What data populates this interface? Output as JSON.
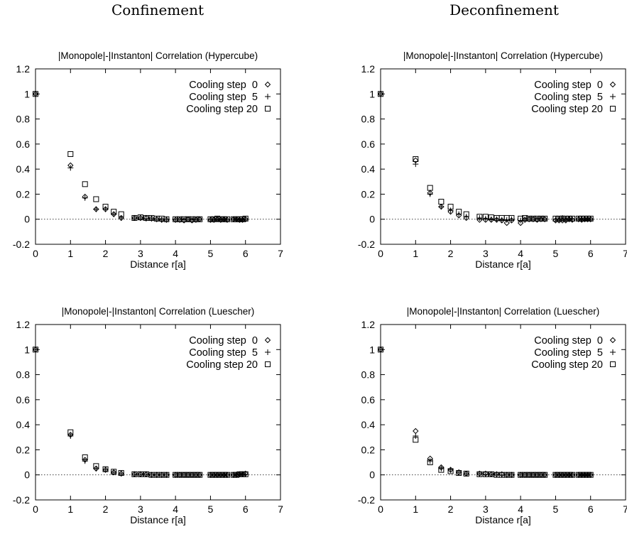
{
  "column_headers": [
    "Confinement",
    "Deconfinement"
  ],
  "chart_data": [
    {
      "type": "scatter",
      "title": "|Monopole|-|Instanton| Correlation (Hypercube)",
      "column": "Confinement",
      "xlabel": "Distance r[a]",
      "ylabel": "",
      "xlim": [
        0,
        7
      ],
      "ylim": [
        -0.2,
        1.2
      ],
      "xticks": [
        "0",
        "1",
        "2",
        "3",
        "4",
        "5",
        "6",
        "7"
      ],
      "yticks": [
        "-0.2",
        "0",
        "0.2",
        "0.4",
        "0.6",
        "0.8",
        "1",
        "1.2"
      ],
      "grid": false,
      "legend_position": "top-right",
      "zero_line": true,
      "series": [
        {
          "name": "Cooling step  0",
          "marker": "diamond",
          "x": [
            0,
            1,
            1.414,
            1.732,
            2,
            2.236,
            2.449,
            2.828,
            3,
            3.162,
            3.317,
            3.464,
            3.606,
            3.742,
            4,
            4.123,
            4.243,
            4.359,
            4.472,
            4.583,
            4.69,
            5,
            5.099,
            5.196,
            5.292,
            5.385,
            5.477,
            5.657,
            5.745,
            5.831,
            5.916,
            6
          ],
          "y": [
            1,
            0.43,
            0.18,
            0.08,
            0.08,
            0.04,
            0.01,
            0.01,
            0.01,
            0.01,
            0.005,
            0.0,
            -0.005,
            -0.005,
            -0.005,
            -0.005,
            -0.01,
            0.0,
            -0.01,
            -0.005,
            0.0,
            -0.005,
            -0.005,
            0.0,
            -0.005,
            0.0,
            -0.005,
            0.0,
            0.0,
            -0.005,
            -0.005,
            0.0
          ]
        },
        {
          "name": "Cooling step  5",
          "marker": "plus",
          "x": [
            0,
            1,
            1.414,
            1.732,
            2,
            2.236,
            2.449,
            2.828,
            3,
            3.162,
            3.317,
            3.464,
            3.606,
            3.742,
            4,
            4.123,
            4.243,
            4.359,
            4.472,
            4.583,
            4.69,
            5,
            5.099,
            5.196,
            5.292,
            5.385,
            5.477,
            5.657,
            5.745,
            5.831,
            5.916,
            6
          ],
          "y": [
            1,
            0.41,
            0.17,
            0.08,
            0.08,
            0.04,
            0.01,
            0.01,
            0.01,
            0.005,
            0.005,
            0.0,
            -0.005,
            -0.005,
            -0.005,
            -0.005,
            -0.005,
            0.0,
            -0.005,
            -0.005,
            0.0,
            -0.005,
            -0.005,
            0.0,
            -0.005,
            0.0,
            -0.005,
            0.0,
            0.0,
            -0.005,
            -0.005,
            0.0
          ]
        },
        {
          "name": "Cooling step 20",
          "marker": "square",
          "x": [
            0,
            1,
            1.414,
            1.732,
            2,
            2.236,
            2.449,
            2.828,
            3,
            3.162,
            3.317,
            3.464,
            3.606,
            3.742,
            4,
            4.123,
            4.243,
            4.359,
            4.472,
            4.583,
            4.69,
            5,
            5.099,
            5.196,
            5.292,
            5.385,
            5.477,
            5.657,
            5.745,
            5.831,
            5.916,
            6
          ],
          "y": [
            1,
            0.52,
            0.28,
            0.16,
            0.1,
            0.06,
            0.04,
            0.01,
            0.015,
            0.01,
            0.01,
            0.005,
            0.005,
            0.0,
            0.0,
            0.0,
            0.0,
            0.0,
            0.0,
            0.0,
            0.0,
            0.0,
            0.0,
            0.005,
            0.0,
            0.0,
            0.0,
            0.0,
            0.0,
            0.0,
            0.0,
            0.005
          ]
        }
      ]
    },
    {
      "type": "scatter",
      "title": "|Monopole|-|Instanton| Correlation (Hypercube)",
      "column": "Deconfinement",
      "xlabel": "Distance r[a]",
      "ylabel": "",
      "xlim": [
        0,
        7
      ],
      "ylim": [
        -0.2,
        1.2
      ],
      "xticks": [
        "0",
        "1",
        "2",
        "3",
        "4",
        "5",
        "6",
        "7"
      ],
      "yticks": [
        "-0.2",
        "0",
        "0.2",
        "0.4",
        "0.6",
        "0.8",
        "1",
        "1.2"
      ],
      "grid": false,
      "legend_position": "top-right",
      "zero_line": true,
      "series": [
        {
          "name": "Cooling step  0",
          "marker": "diamond",
          "x": [
            0,
            1,
            1.414,
            1.732,
            2,
            2.236,
            2.449,
            2.828,
            3,
            3.162,
            3.317,
            3.464,
            3.606,
            3.742,
            4,
            4.123,
            4.243,
            4.359,
            4.472,
            4.583,
            4.69,
            5,
            5.099,
            5.196,
            5.292,
            5.385,
            5.477,
            5.657,
            5.745,
            5.831,
            5.916,
            6
          ],
          "y": [
            1,
            0.47,
            0.21,
            0.1,
            0.06,
            0.03,
            0.01,
            -0.005,
            -0.005,
            -0.005,
            -0.005,
            -0.01,
            -0.03,
            -0.01,
            -0.03,
            -0.005,
            0.0,
            0.0,
            -0.005,
            0.0,
            0.0,
            -0.01,
            -0.01,
            -0.01,
            -0.01,
            0.0,
            -0.005,
            0.0,
            -0.005,
            0.0,
            0.0,
            0.0
          ]
        },
        {
          "name": "Cooling step  5",
          "marker": "plus",
          "x": [
            0,
            1,
            1.414,
            1.732,
            2,
            2.236,
            2.449,
            2.828,
            3,
            3.162,
            3.317,
            3.464,
            3.606,
            3.742,
            4,
            4.123,
            4.243,
            4.359,
            4.472,
            4.583,
            4.69,
            5,
            5.099,
            5.196,
            5.292,
            5.385,
            5.477,
            5.657,
            5.745,
            5.831,
            5.916,
            6
          ],
          "y": [
            1,
            0.44,
            0.2,
            0.1,
            0.07,
            0.04,
            0.02,
            0.01,
            0.005,
            0.0,
            0.0,
            -0.005,
            -0.005,
            0.0,
            -0.01,
            0.0,
            0.0,
            0.0,
            0.0,
            0.005,
            0.0,
            0.0,
            0.0,
            0.01,
            0.0,
            0.0,
            0.0,
            0.0,
            0.0,
            0.0,
            0.0,
            0.0
          ]
        },
        {
          "name": "Cooling step 20",
          "marker": "square",
          "x": [
            0,
            1,
            1.414,
            1.732,
            2,
            2.236,
            2.449,
            2.828,
            3,
            3.162,
            3.317,
            3.464,
            3.606,
            3.742,
            4,
            4.123,
            4.243,
            4.359,
            4.472,
            4.583,
            4.69,
            5,
            5.099,
            5.196,
            5.292,
            5.385,
            5.477,
            5.657,
            5.745,
            5.831,
            5.916,
            6
          ],
          "y": [
            1,
            0.48,
            0.25,
            0.14,
            0.1,
            0.06,
            0.04,
            0.02,
            0.02,
            0.015,
            0.01,
            0.01,
            0.01,
            0.01,
            0.005,
            0.01,
            0.005,
            0.005,
            0.005,
            0.005,
            0.005,
            0.005,
            0.005,
            0.005,
            0.005,
            0.005,
            0.005,
            0.005,
            0.005,
            0.005,
            0.005,
            0.005
          ]
        }
      ]
    },
    {
      "type": "scatter",
      "title": "|Monopole|-|Instanton| Correlation (Luescher)",
      "column": "Confinement",
      "xlabel": "Distance r[a]",
      "ylabel": "",
      "xlim": [
        0,
        7
      ],
      "ylim": [
        -0.2,
        1.2
      ],
      "xticks": [
        "0",
        "1",
        "2",
        "3",
        "4",
        "5",
        "6",
        "7"
      ],
      "yticks": [
        "-0.2",
        "0",
        "0.2",
        "0.4",
        "0.6",
        "0.8",
        "1",
        "1.2"
      ],
      "grid": false,
      "legend_position": "top-right",
      "zero_line": true,
      "series": [
        {
          "name": "Cooling step  0",
          "marker": "diamond",
          "x": [
            0,
            1,
            1.414,
            1.732,
            2,
            2.236,
            2.449,
            2.828,
            3,
            3.162,
            3.317,
            3.464,
            3.606,
            3.742,
            4,
            4.123,
            4.243,
            4.359,
            4.472,
            4.583,
            4.69,
            5,
            5.099,
            5.196,
            5.292,
            5.385,
            5.477,
            5.657,
            5.745,
            5.831,
            5.916,
            6
          ],
          "y": [
            1,
            0.32,
            0.12,
            0.05,
            0.04,
            0.02,
            0.01,
            0.005,
            0.005,
            0.005,
            0.0,
            0.0,
            0.0,
            0.0,
            0.0,
            0.0,
            0.0,
            0.0,
            0.0,
            0.0,
            0.0,
            0.0,
            0.0,
            0.0,
            0.0,
            0.0,
            0.0,
            0.0,
            0.0,
            0.005,
            0.005,
            0.01
          ]
        },
        {
          "name": "Cooling step  5",
          "marker": "plus",
          "x": [
            0,
            1,
            1.414,
            1.732,
            2,
            2.236,
            2.449,
            2.828,
            3,
            3.162,
            3.317,
            3.464,
            3.606,
            3.742,
            4,
            4.123,
            4.243,
            4.359,
            4.472,
            4.583,
            4.69,
            5,
            5.099,
            5.196,
            5.292,
            5.385,
            5.477,
            5.657,
            5.745,
            5.831,
            5.916,
            6
          ],
          "y": [
            1,
            0.31,
            0.11,
            0.05,
            0.04,
            0.02,
            0.01,
            0.005,
            0.005,
            0.005,
            0.0,
            0.0,
            0.0,
            0.0,
            0.0,
            0.0,
            0.0,
            0.0,
            0.0,
            0.0,
            0.0,
            0.0,
            0.0,
            0.0,
            0.0,
            0.0,
            0.0,
            0.0,
            0.0,
            0.005,
            0.005,
            0.005
          ]
        },
        {
          "name": "Cooling step 20",
          "marker": "square",
          "x": [
            0,
            1,
            1.414,
            1.732,
            2,
            2.236,
            2.449,
            2.828,
            3,
            3.162,
            3.317,
            3.464,
            3.606,
            3.742,
            4,
            4.123,
            4.243,
            4.359,
            4.472,
            4.583,
            4.69,
            5,
            5.099,
            5.196,
            5.292,
            5.385,
            5.477,
            5.657,
            5.745,
            5.831,
            5.916,
            6
          ],
          "y": [
            1,
            0.34,
            0.14,
            0.07,
            0.045,
            0.025,
            0.015,
            0.005,
            0.005,
            0.005,
            0.0,
            0.0,
            0.0,
            0.0,
            0.0,
            0.0,
            0.0,
            0.0,
            0.0,
            0.0,
            0.0,
            0.0,
            0.0,
            0.0,
            0.0,
            0.0,
            0.0,
            0.0,
            0.0,
            0.005,
            0.005,
            0.005
          ]
        }
      ]
    },
    {
      "type": "scatter",
      "title": "|Monopole|-|Instanton| Correlation (Luescher)",
      "column": "Deconfinement",
      "xlabel": "Distance r[a]",
      "ylabel": "",
      "xlim": [
        0,
        7
      ],
      "ylim": [
        -0.2,
        1.2
      ],
      "xticks": [
        "0",
        "1",
        "2",
        "3",
        "4",
        "5",
        "6",
        "7"
      ],
      "yticks": [
        "-0.2",
        "0",
        "0.2",
        "0.4",
        "0.6",
        "0.8",
        "1",
        "1.2"
      ],
      "grid": false,
      "legend_position": "top-right",
      "zero_line": true,
      "series": [
        {
          "name": "Cooling step  0",
          "marker": "diamond",
          "x": [
            0,
            1,
            1.414,
            1.732,
            2,
            2.236,
            2.449,
            2.828,
            3,
            3.162,
            3.317,
            3.464,
            3.606,
            3.742,
            4,
            4.123,
            4.243,
            4.359,
            4.472,
            4.583,
            4.69,
            5,
            5.099,
            5.196,
            5.292,
            5.385,
            5.477,
            5.657,
            5.745,
            5.831,
            5.916,
            6
          ],
          "y": [
            1,
            0.35,
            0.13,
            0.06,
            0.04,
            0.02,
            0.01,
            0.01,
            0.01,
            0.005,
            0.005,
            0.005,
            0.0,
            0.0,
            0.0,
            0.0,
            0.0,
            0.0,
            0.0,
            0.0,
            0.0,
            0.0,
            0.0,
            0.0,
            0.0,
            0.0,
            0.0,
            0.0,
            0.0,
            0.0,
            0.0,
            0.0
          ]
        },
        {
          "name": "Cooling step  5",
          "marker": "plus",
          "x": [
            0,
            1,
            1.414,
            1.732,
            2,
            2.236,
            2.449,
            2.828,
            3,
            3.162,
            3.317,
            3.464,
            3.606,
            3.742,
            4,
            4.123,
            4.243,
            4.359,
            4.472,
            4.583,
            4.69,
            5,
            5.099,
            5.196,
            5.292,
            5.385,
            5.477,
            5.657,
            5.745,
            5.831,
            5.916,
            6
          ],
          "y": [
            1,
            0.31,
            0.11,
            0.05,
            0.04,
            0.02,
            0.01,
            0.01,
            0.005,
            0.005,
            0.005,
            0.0,
            0.0,
            0.0,
            0.0,
            0.0,
            0.0,
            0.0,
            0.0,
            0.0,
            0.0,
            0.0,
            0.0,
            0.0,
            0.0,
            0.0,
            0.0,
            0.0,
            0.0,
            0.0,
            0.0,
            0.0
          ]
        },
        {
          "name": "Cooling step 20",
          "marker": "square",
          "x": [
            0,
            1,
            1.414,
            1.732,
            2,
            2.236,
            2.449,
            2.828,
            3,
            3.162,
            3.317,
            3.464,
            3.606,
            3.742,
            4,
            4.123,
            4.243,
            4.359,
            4.472,
            4.583,
            4.69,
            5,
            5.099,
            5.196,
            5.292,
            5.385,
            5.477,
            5.657,
            5.745,
            5.831,
            5.916,
            6
          ],
          "y": [
            1,
            0.28,
            0.1,
            0.04,
            0.03,
            0.015,
            0.01,
            0.005,
            0.005,
            0.005,
            0.0,
            0.0,
            0.0,
            0.0,
            0.0,
            0.0,
            0.0,
            0.0,
            0.0,
            0.0,
            0.0,
            0.0,
            0.0,
            0.0,
            0.0,
            0.0,
            0.0,
            0.0,
            0.0,
            0.0,
            0.0,
            0.0
          ]
        }
      ]
    }
  ]
}
